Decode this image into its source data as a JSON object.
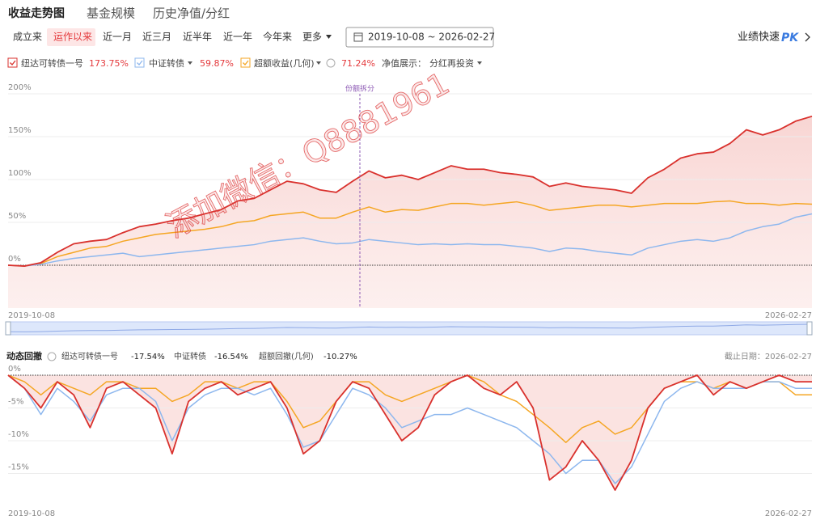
{
  "tabs": [
    "收益走势图",
    "基金规模",
    "历史净值/分红"
  ],
  "periods": [
    "成立来",
    "运作以来",
    "近一月",
    "近三月",
    "近半年",
    "近一年",
    "今年来",
    "更多"
  ],
  "date_range": "2019-10-08 ~ 2026-02-27",
  "pk": {
    "label": "业绩快速",
    "badge": "PK"
  },
  "nav_display": {
    "label": "净值展示：",
    "value": "分红再投资"
  },
  "watermark": "添加微信：Q8881961",
  "return_chart": {
    "type": "line",
    "annotation": "份额拆分",
    "categories": [
      "2019-10-08",
      null,
      null,
      null,
      null,
      null,
      null,
      null,
      null,
      null,
      null,
      null,
      null,
      null,
      null,
      null,
      null,
      null,
      null,
      null,
      null,
      null,
      null,
      null,
      null,
      null,
      null,
      null,
      null,
      null,
      null,
      null,
      null,
      null,
      null,
      null,
      null,
      null,
      null,
      null,
      null,
      null,
      null,
      null,
      null,
      null,
      null,
      null,
      null,
      "2026-02-27"
    ],
    "series": [
      {
        "name": "纽达可转债一号",
        "color": "#d9312d",
        "total": "173.75%",
        "values": [
          0,
          -1,
          3,
          15,
          25,
          28,
          30,
          38,
          45,
          48,
          52,
          55,
          60,
          65,
          75,
          78,
          88,
          98,
          95,
          88,
          85,
          98,
          110,
          102,
          105,
          100,
          108,
          116,
          112,
          112,
          108,
          106,
          103,
          92,
          96,
          92,
          90,
          88,
          84,
          102,
          112,
          125,
          130,
          132,
          142,
          158,
          152,
          158,
          168,
          173.75
        ]
      },
      {
        "name": "中证转债",
        "color": "#8db7ee",
        "total": "59.87%",
        "values": [
          0,
          -1,
          1,
          5,
          8,
          10,
          12,
          14,
          10,
          12,
          14,
          16,
          18,
          20,
          22,
          24,
          28,
          30,
          32,
          28,
          25,
          26,
          30,
          28,
          26,
          24,
          25,
          24,
          25,
          24,
          24,
          22,
          20,
          16,
          20,
          19,
          16,
          14,
          12,
          20,
          24,
          28,
          30,
          28,
          32,
          40,
          45,
          48,
          56,
          59.87
        ]
      },
      {
        "name": "超额收益(几何)",
        "color": "#f5a623",
        "total": "71.24%",
        "values": [
          0,
          -1,
          2,
          10,
          15,
          20,
          22,
          28,
          32,
          36,
          38,
          40,
          42,
          45,
          50,
          52,
          58,
          60,
          62,
          55,
          55,
          62,
          68,
          62,
          65,
          64,
          68,
          72,
          72,
          70,
          72,
          74,
          70,
          64,
          66,
          68,
          70,
          70,
          68,
          70,
          72,
          72,
          72,
          74,
          75,
          72,
          72,
          70,
          72,
          71.24
        ]
      }
    ],
    "ylim": [
      -50,
      210
    ],
    "yticks": [
      {
        "value": 0,
        "label": "0%"
      },
      {
        "value": 50,
        "label": "50%"
      },
      {
        "value": 100,
        "label": "100%"
      },
      {
        "value": 150,
        "label": "150%"
      },
      {
        "value": 200,
        "label": "200%"
      }
    ],
    "grid": true
  },
  "drawdown_chart": {
    "type": "line",
    "title": "动态回撤",
    "as_of": "截止日期：2026-02-27",
    "categories": [
      "2019-10-08",
      null,
      null,
      null,
      null,
      null,
      null,
      null,
      null,
      null,
      null,
      null,
      null,
      null,
      null,
      null,
      null,
      null,
      null,
      null,
      null,
      null,
      null,
      null,
      null,
      null,
      null,
      null,
      null,
      null,
      null,
      null,
      null,
      null,
      null,
      null,
      null,
      null,
      null,
      null,
      null,
      null,
      null,
      null,
      null,
      null,
      null,
      null,
      null,
      "2026-02-27"
    ],
    "series": [
      {
        "name": "纽达可转债一号",
        "color": "#d9312d",
        "total": "-17.54%",
        "values": [
          0,
          -2,
          -5,
          -1,
          -3,
          -8,
          -2,
          -1,
          -3,
          -5,
          -12,
          -4,
          -2,
          -1,
          -3,
          -2,
          -1,
          -5,
          -12,
          -10,
          -4,
          -1,
          -2,
          -6,
          -10,
          -8,
          -3,
          -1,
          0,
          -2,
          -3,
          -1,
          -5,
          -16,
          -14,
          -10,
          -13,
          -17.54,
          -13,
          -5,
          -2,
          -1,
          0,
          -3,
          -1,
          -2,
          -1,
          0,
          -1,
          -1
        ]
      },
      {
        "name": "中证转债",
        "color": "#8db7ee",
        "total": "-16.54%",
        "values": [
          0,
          -2,
          -6,
          -2,
          -4,
          -7,
          -3,
          -2,
          -2,
          -4,
          -10,
          -5,
          -3,
          -2,
          -2,
          -3,
          -2,
          -6,
          -11,
          -10,
          -6,
          -2,
          -3,
          -5,
          -8,
          -7,
          -6,
          -6,
          -5,
          -6,
          -7,
          -8,
          -10,
          -12,
          -15,
          -13,
          -13,
          -16.54,
          -14,
          -9,
          -4,
          -2,
          -1,
          -2,
          -2,
          -2,
          -1,
          -1,
          -2,
          -2
        ]
      },
      {
        "name": "超额回撤(几何)",
        "color": "#f5a623",
        "total": "-10.27%",
        "values": [
          0,
          -1,
          -3,
          -1,
          -2,
          -3,
          -1,
          -1,
          -2,
          -2,
          -4,
          -3,
          -1,
          -1,
          -2,
          -1,
          -1,
          -4,
          -8,
          -7,
          -4,
          -1,
          -1,
          -3,
          -4,
          -3,
          -2,
          -1,
          0,
          -1,
          -3,
          -4,
          -6,
          -8,
          -10.27,
          -8,
          -7,
          -9,
          -8,
          -5,
          -2,
          -1,
          -1,
          -2,
          -1,
          -2,
          -1,
          -1,
          -3,
          -3
        ]
      }
    ],
    "ylim": [
      -20,
      1
    ],
    "yticks": [
      {
        "value": 0,
        "label": "0%"
      },
      {
        "value": -5,
        "label": "-5%"
      },
      {
        "value": -10,
        "label": "-10%"
      },
      {
        "value": -15,
        "label": "-15%"
      }
    ],
    "grid": true
  }
}
